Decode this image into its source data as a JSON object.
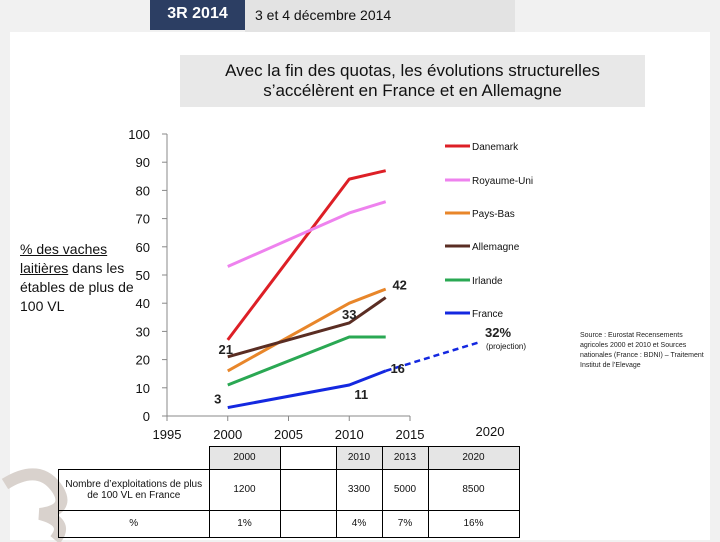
{
  "header": {
    "badge": "3R 2014",
    "date": "3 et 4 décembre 2014"
  },
  "title_lines": [
    "Avec la fin des quotas, les évolutions structurelles",
    "s’accélèrent en France et en Allemagne"
  ],
  "ylabel": {
    "underlined": "% des vaches laitières",
    "rest": "dans les étables de plus de 100 VL"
  },
  "source": "Source : Eurostat Recensements agricoles 2000 et 2010 et Sources nationales (France : BDNI) – Traitement Institut de l’Elevage",
  "chart_data": {
    "type": "line",
    "ylim": [
      0,
      100
    ],
    "yticks": [
      "0",
      "10",
      "20",
      "30",
      "40",
      "50",
      "60",
      "70",
      "80",
      "90",
      "100"
    ],
    "xticks": [
      "1995",
      "2000",
      "2005",
      "2010",
      "2015"
    ],
    "xlim": [
      1995,
      2015
    ],
    "extra_xlabel": "2020",
    "legend_position": "right",
    "series": [
      {
        "name": "Danemark",
        "color": "#dd1f26",
        "points": [
          [
            2000,
            27
          ],
          [
            2010,
            84
          ],
          [
            2013,
            87
          ]
        ]
      },
      {
        "name": "Royaume-Uni",
        "color": "#ee82ee",
        "points": [
          [
            2000,
            53
          ],
          [
            2010,
            72
          ],
          [
            2013,
            76
          ]
        ]
      },
      {
        "name": "Pays-Bas",
        "color": "#e8862a",
        "points": [
          [
            2000,
            16
          ],
          [
            2010,
            40
          ],
          [
            2013,
            45
          ]
        ]
      },
      {
        "name": "Allemagne",
        "color": "#5a2d23",
        "points": [
          [
            2000,
            21
          ],
          [
            2010,
            33
          ],
          [
            2013,
            42
          ]
        ]
      },
      {
        "name": "Irlande",
        "color": "#2aa853",
        "points": [
          [
            2000,
            11
          ],
          [
            2010,
            28
          ],
          [
            2013,
            28
          ]
        ]
      },
      {
        "name": "France",
        "color": "#1428e0",
        "points": [
          [
            2000,
            3
          ],
          [
            2010,
            11
          ],
          [
            2013,
            16
          ]
        ]
      }
    ],
    "france_projection": {
      "from": [
        2013,
        16
      ],
      "to": [
        2020,
        32
      ],
      "color": "#1428e0"
    },
    "annotations": [
      {
        "text": "21",
        "at": [
          2000,
          21
        ]
      },
      {
        "text": "33",
        "at": [
          2010,
          33
        ]
      },
      {
        "text": "42",
        "at": [
          2013,
          42
        ]
      },
      {
        "text": "3",
        "at": [
          2000,
          3
        ]
      },
      {
        "text": "11",
        "at": [
          2010,
          11
        ]
      },
      {
        "text": "16",
        "at": [
          2013,
          16
        ]
      }
    ],
    "projection_value": "32%",
    "projection_label": "(projection)"
  },
  "table": {
    "headers": [
      "2000",
      "2010",
      "2013",
      "2020"
    ],
    "rows": [
      {
        "label": "Nombre d’exploitations de plus de 100 VL en France",
        "values": [
          "1200",
          "3300",
          "5000",
          "8500"
        ]
      },
      {
        "label": "%",
        "values": [
          "1%",
          "4%",
          "7%",
          "16%"
        ]
      }
    ]
  }
}
